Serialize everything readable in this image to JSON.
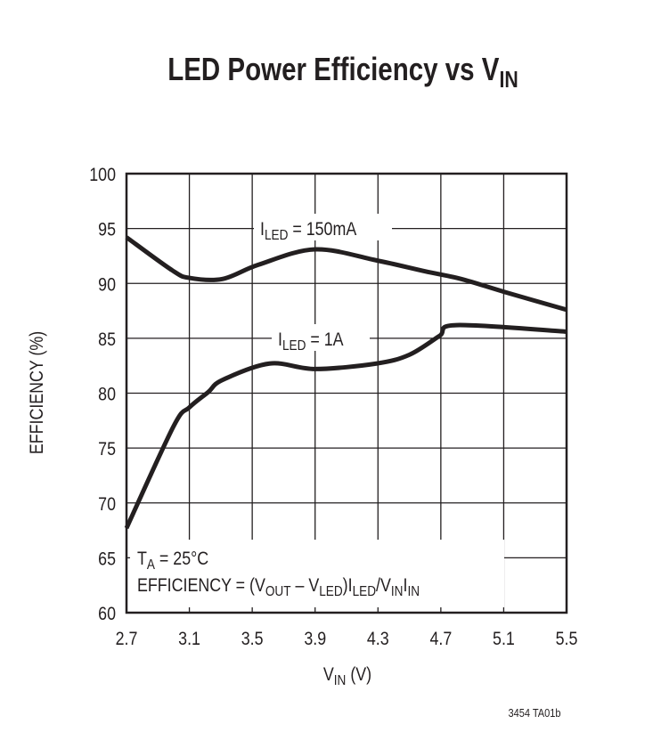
{
  "chart_data": {
    "type": "line",
    "title": {
      "main": "LED Power Efficiency vs V",
      "sub": "IN"
    },
    "xlabel": {
      "main": "V",
      "sub": "IN",
      "suffix": " (V)"
    },
    "ylabel": "EFFICIENCY (%)",
    "xlim": [
      2.7,
      5.5
    ],
    "ylim": [
      60,
      100
    ],
    "xticks": [
      "2.7",
      "3.1",
      "3.5",
      "3.9",
      "4.3",
      "4.7",
      "5.1",
      "5.5"
    ],
    "yticks": [
      "60",
      "65",
      "70",
      "75",
      "80",
      "85",
      "90",
      "95",
      "100"
    ],
    "grid": true,
    "series": [
      {
        "name": {
          "main": "I",
          "sub": "LED",
          "suffix": " = 150mA"
        },
        "x": [
          2.7,
          2.99,
          3.1,
          3.31,
          3.54,
          3.9,
          4.29,
          4.6,
          4.83,
          5.11,
          5.5
        ],
        "y": [
          94.2,
          91.2,
          90.5,
          90.4,
          91.7,
          93.1,
          92.1,
          91.1,
          90.4,
          89.2,
          87.6
        ]
      },
      {
        "name": {
          "main": "I",
          "sub": "LED",
          "suffix": " = 1A"
        },
        "x": [
          2.7,
          3.0,
          3.1,
          3.22,
          3.31,
          3.61,
          3.9,
          4.29,
          4.5,
          4.69,
          4.8,
          5.5
        ],
        "y": [
          67.7,
          77.0,
          78.7,
          80.1,
          81.2,
          82.7,
          82.2,
          82.7,
          83.5,
          85.2,
          86.2,
          85.6
        ]
      }
    ],
    "annotations": {
      "temperature": {
        "main": "T",
        "sub": "A",
        "suffix": " = 25°C"
      },
      "formula": [
        "EFFICIENCY = (V",
        "OUT",
        " – V",
        "LED",
        ")I",
        "LED",
        "/V",
        "IN",
        "I",
        "IN"
      ]
    },
    "line_color": "#231f20"
  },
  "footer": {
    "figure_id": "3454 TA01b"
  }
}
